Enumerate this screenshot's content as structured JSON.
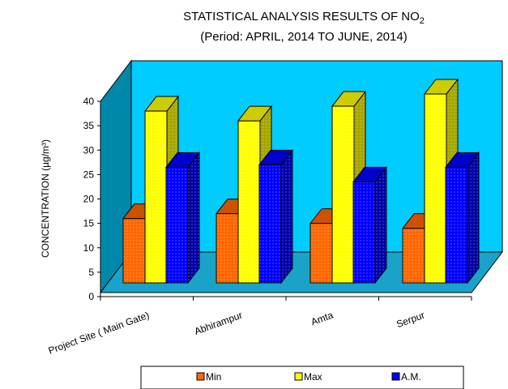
{
  "chart_data": {
    "type": "bar",
    "title": "STATISTICAL  ANALYSIS RESULTS OF NO",
    "title_subscript": "2",
    "subtitle": "(Period: APRIL, 2014 TO JUNE, 2014)",
    "ylabel": "CONCENTRATION (µg/m³)",
    "xlabel": "",
    "ylim": [
      0,
      40
    ],
    "yticks": [
      "0",
      "5",
      "10",
      "15",
      "20",
      "25",
      "30",
      "35",
      "40"
    ],
    "categories": [
      "Project Site ( Main Gate)",
      "Abhirampur",
      "Amta",
      "Serpur"
    ],
    "series": [
      {
        "name": "Min",
        "values": [
          16,
          17,
          15,
          14
        ],
        "color": "#ff6600"
      },
      {
        "name": "Max",
        "values": [
          38,
          36,
          39,
          41.5
        ],
        "color": "#ffff00"
      },
      {
        "name": "A.M.",
        "values": [
          26.5,
          27,
          23.5,
          26.5
        ],
        "color": "#0000ff"
      }
    ],
    "legend_position": "bottom",
    "grid": false,
    "style": "3d-column",
    "colors": {
      "wall_back": "#00ccff",
      "wall_side": "#0088aa",
      "floor": "#1aa3c8"
    }
  }
}
